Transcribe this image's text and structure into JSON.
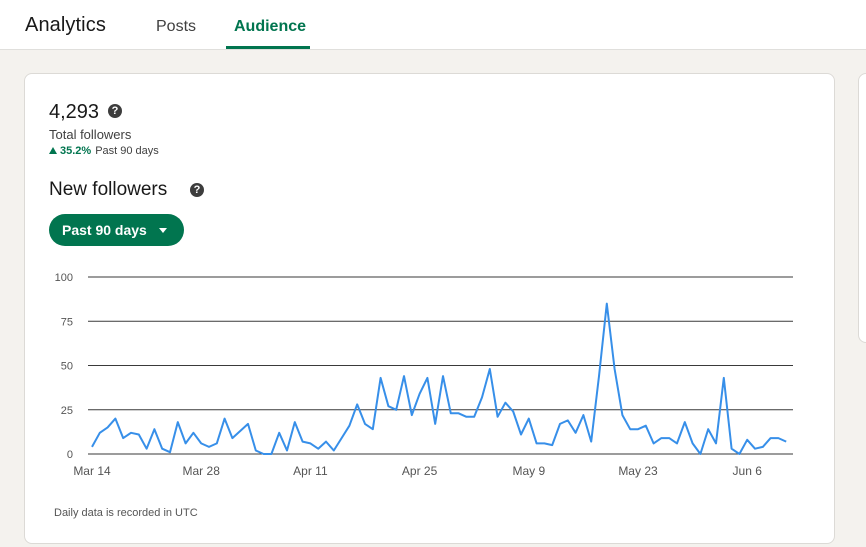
{
  "header": {
    "title": "Analytics",
    "tabs": [
      {
        "label": "Posts",
        "active": false
      },
      {
        "label": "Audience",
        "active": true
      }
    ],
    "accent_color": "#01754f"
  },
  "summary": {
    "total_followers": "4,293",
    "total_label": "Total followers",
    "growth_percent": "35.2%",
    "growth_period": "Past 90 days",
    "help_icon": "question-circle-icon"
  },
  "new_followers": {
    "title": "New followers",
    "range_button_label": "Past 90 days",
    "footnote": "Daily data is recorded in UTC"
  },
  "chart_data": {
    "type": "line",
    "title": "",
    "xlabel": "",
    "ylabel": "",
    "ylim": [
      0,
      100
    ],
    "yticks": [
      0,
      25,
      50,
      75,
      100
    ],
    "x_tick_labels": [
      "Mar 14",
      "Mar 28",
      "Apr 11",
      "Apr 25",
      "May 9",
      "May 23",
      "Jun 6"
    ],
    "x_tick_day_index": [
      0,
      14,
      28,
      42,
      56,
      70,
      84
    ],
    "grid": true,
    "line_color": "#378fe9",
    "series": [
      {
        "values": [
          4,
          12,
          15,
          20,
          9,
          12,
          11,
          3,
          14,
          3,
          1,
          18,
          6,
          12,
          6,
          4,
          6,
          20,
          9,
          13,
          17,
          2,
          0,
          0,
          12,
          2,
          18,
          7,
          6,
          3,
          7,
          2,
          9,
          16,
          28,
          17,
          14,
          43,
          27,
          25,
          44,
          22,
          34,
          43,
          17,
          44,
          23,
          23,
          21,
          21,
          32,
          48,
          21,
          29,
          24,
          11,
          20,
          6,
          6,
          5,
          17,
          19,
          12,
          22,
          7,
          44,
          85,
          48,
          22,
          14,
          14,
          16,
          6,
          9,
          9,
          6,
          18,
          6,
          0,
          14,
          6,
          43,
          3,
          0,
          8,
          3,
          4,
          9,
          9,
          7
        ]
      }
    ]
  }
}
